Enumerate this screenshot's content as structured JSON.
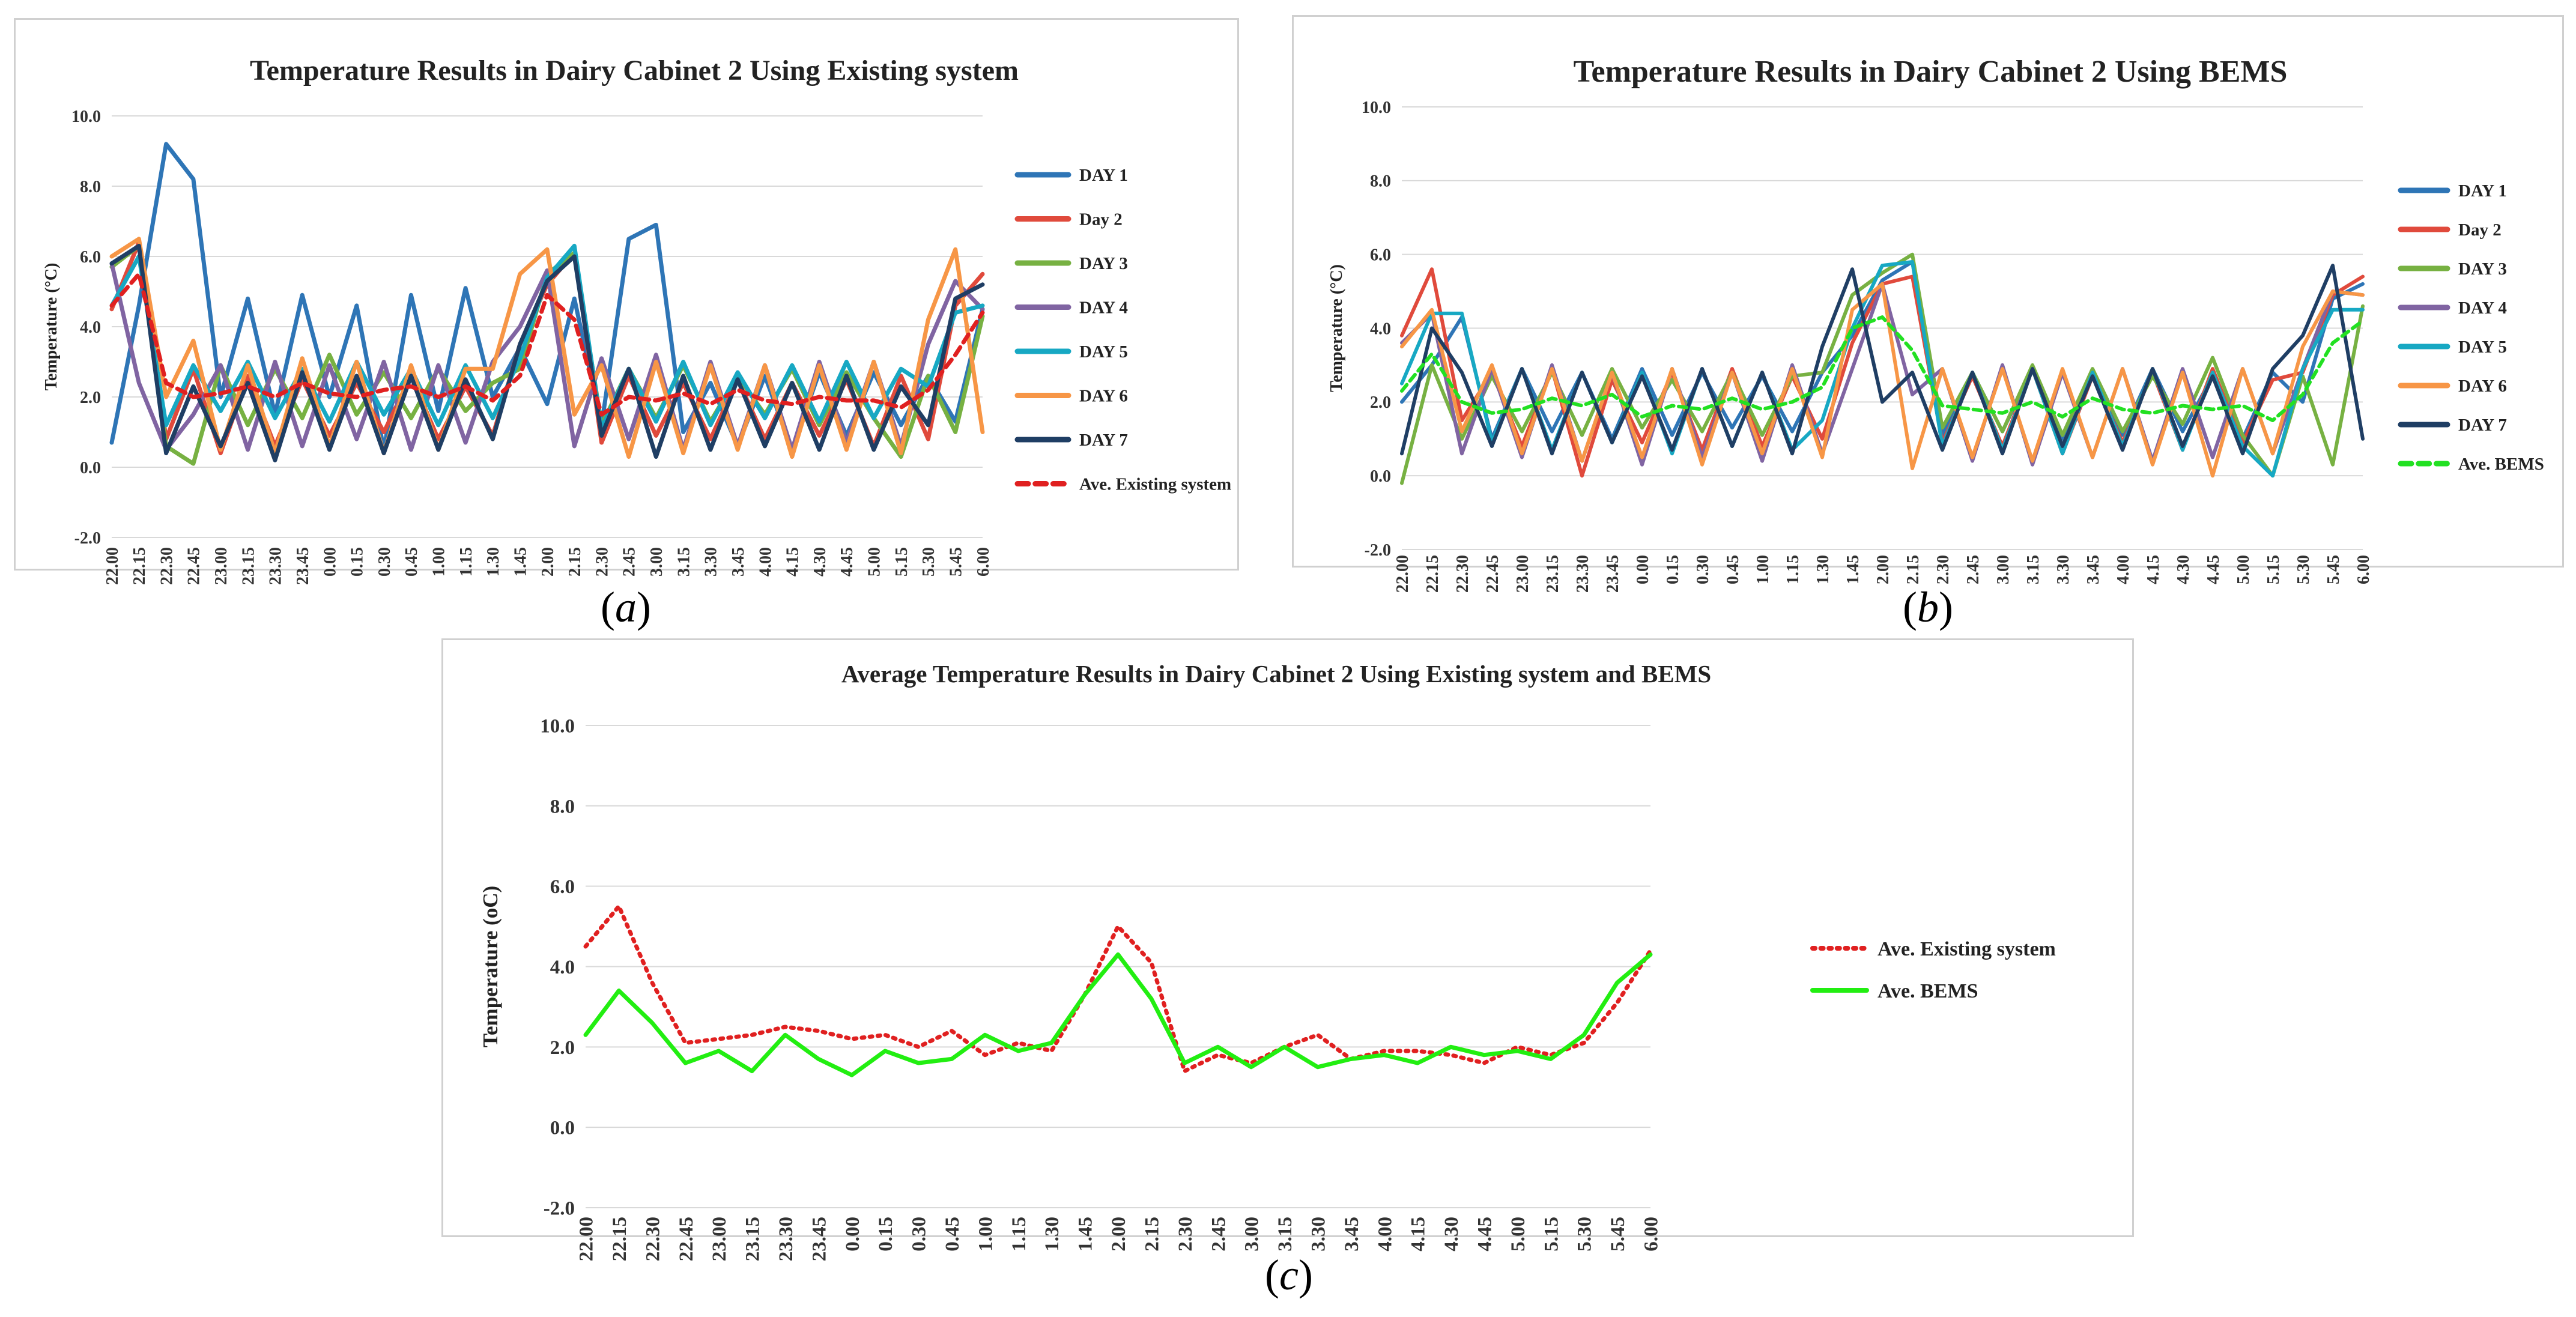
{
  "captions": [
    "a",
    "b",
    "c"
  ],
  "chart_data": [
    {
      "type": "line",
      "title": "Temperature Results in Dairy Cabinet 2 Using Existing system",
      "xlabel": "",
      "ylabel": "Temperature (°C)",
      "ylim": [
        -2,
        10
      ],
      "yticks": [
        "10.0",
        "8.0",
        "6.0",
        "4.0",
        "2.0",
        "0.0",
        "-2.0"
      ],
      "categories": [
        "22.00",
        "22.15",
        "22.30",
        "22.45",
        "23.00",
        "23.15",
        "23.30",
        "23.45",
        "0.00",
        "0.15",
        "0.30",
        "0.45",
        "1.00",
        "1.15",
        "1.30",
        "1.45",
        "2.00",
        "2.15",
        "2.30",
        "2.45",
        "3.00",
        "3.15",
        "3.30",
        "3.45",
        "4.00",
        "4.15",
        "4.30",
        "4.45",
        "5.00",
        "5.15",
        "5.30",
        "5.45",
        "6.00"
      ],
      "series": [
        {
          "name": "DAY 1",
          "color": "#2e75b6",
          "style": "solid",
          "values": [
            0.7,
            4.6,
            9.2,
            8.2,
            2.0,
            4.8,
            1.5,
            4.9,
            2.0,
            4.6,
            0.5,
            4.9,
            1.6,
            5.1,
            2.0,
            3.4,
            1.8,
            4.8,
            1.2,
            6.5,
            6.9,
            1.0,
            2.4,
            0.6,
            2.6,
            0.5,
            2.7,
            0.9,
            2.7,
            1.2,
            2.6,
            1.3,
            4.5
          ]
        },
        {
          "name": "Day 2",
          "color": "#e04a3c",
          "style": "solid",
          "values": [
            4.5,
            6.4,
            0.8,
            2.8,
            0.4,
            2.6,
            0.6,
            2.5,
            0.9,
            2.4,
            1.0,
            2.6,
            0.8,
            2.3,
            0.9,
            3.5,
            5.2,
            6.1,
            0.7,
            2.6,
            0.9,
            2.4,
            0.8,
            2.5,
            0.8,
            2.4,
            0.9,
            2.5,
            0.6,
            2.6,
            0.8,
            4.6,
            5.5
          ]
        },
        {
          "name": "DAY 3",
          "color": "#77b142",
          "style": "solid",
          "values": [
            5.7,
            6.3,
            0.6,
            0.1,
            2.9,
            1.2,
            2.8,
            1.4,
            3.2,
            1.5,
            2.7,
            1.4,
            2.8,
            1.6,
            2.4,
            2.8,
            5.5,
            6.1,
            1.2,
            2.8,
            1.4,
            2.9,
            1.3,
            2.6,
            1.5,
            2.8,
            1.2,
            2.7,
            1.4,
            0.3,
            2.6,
            1.0,
            4.3
          ]
        },
        {
          "name": "DAY 4",
          "color": "#8064a2",
          "style": "solid",
          "values": [
            5.8,
            2.4,
            0.5,
            1.5,
            2.9,
            0.5,
            3.0,
            0.6,
            2.9,
            0.8,
            3.0,
            0.5,
            2.9,
            0.7,
            3.0,
            4.0,
            5.6,
            0.6,
            3.1,
            0.8,
            3.2,
            0.5,
            3.0,
            0.6,
            2.9,
            0.5,
            3.0,
            0.7,
            3.0,
            0.6,
            3.5,
            5.3,
            4.5
          ]
        },
        {
          "name": "DAY 5",
          "color": "#17a8c3",
          "style": "solid",
          "values": [
            4.6,
            6.0,
            1.2,
            2.9,
            1.6,
            3.0,
            1.4,
            2.8,
            1.3,
            3.0,
            1.5,
            2.8,
            1.2,
            2.9,
            1.4,
            3.1,
            5.4,
            6.3,
            1.1,
            2.8,
            1.3,
            3.0,
            1.2,
            2.7,
            1.4,
            2.9,
            1.3,
            3.0,
            1.4,
            2.8,
            2.3,
            4.4,
            4.6
          ]
        },
        {
          "name": "DAY 6",
          "color": "#f79646",
          "style": "solid",
          "values": [
            6.0,
            6.5,
            2.0,
            3.6,
            0.5,
            2.9,
            0.4,
            3.1,
            0.6,
            3.0,
            0.4,
            2.9,
            0.5,
            2.8,
            2.8,
            5.5,
            6.2,
            1.5,
            2.9,
            0.3,
            3.0,
            0.4,
            2.9,
            0.5,
            2.9,
            0.3,
            2.9,
            0.5,
            3.0,
            0.4,
            4.2,
            6.2,
            1.0
          ]
        },
        {
          "name": "DAY 7",
          "color": "#1f3e64",
          "style": "solid",
          "values": [
            5.8,
            6.3,
            0.4,
            2.3,
            0.6,
            2.4,
            0.2,
            2.7,
            0.5,
            2.6,
            0.4,
            2.6,
            0.5,
            2.5,
            0.8,
            3.5,
            5.3,
            6.0,
            0.9,
            2.8,
            0.3,
            2.6,
            0.5,
            2.5,
            0.6,
            2.4,
            0.5,
            2.6,
            0.5,
            2.3,
            1.2,
            4.8,
            5.2
          ]
        },
        {
          "name": "Ave. Existing system",
          "color": "#e02020",
          "style": "dashed",
          "values": [
            4.6,
            5.5,
            2.4,
            2.0,
            2.1,
            2.3,
            2.0,
            2.4,
            2.1,
            2.0,
            2.2,
            2.3,
            2.0,
            2.3,
            1.9,
            2.6,
            4.9,
            4.2,
            1.5,
            2.0,
            1.9,
            2.1,
            1.8,
            2.2,
            1.9,
            1.8,
            2.0,
            1.9,
            1.9,
            1.7,
            2.2,
            3.2,
            4.4
          ]
        }
      ]
    },
    {
      "type": "line",
      "title": "Temperature Results in Dairy Cabinet 2 Using BEMS",
      "xlabel": "",
      "ylabel": "Temperature (°C)",
      "ylim": [
        -2,
        10
      ],
      "yticks": [
        "10.0",
        "8.0",
        "6.0",
        "4.0",
        "2.0",
        "0.0",
        "-2.0"
      ],
      "categories": [
        "22.00",
        "22.15",
        "22.30",
        "22.45",
        "23.00",
        "23.15",
        "23.30",
        "23.45",
        "0.00",
        "0.15",
        "0.30",
        "0.45",
        "1.00",
        "1.15",
        "1.30",
        "1.45",
        "2.00",
        "2.15",
        "2.30",
        "2.45",
        "3.00",
        "3.15",
        "3.30",
        "3.45",
        "4.00",
        "4.15",
        "4.30",
        "4.45",
        "5.00",
        "5.15",
        "5.30",
        "5.45",
        "6.00"
      ],
      "series": [
        {
          "name": "DAY 1",
          "color": "#2e75b6",
          "style": "solid",
          "values": [
            2.0,
            3.0,
            4.3,
            1.0,
            2.9,
            1.2,
            2.8,
            1.0,
            2.9,
            1.1,
            2.8,
            1.3,
            2.7,
            1.2,
            2.8,
            3.8,
            5.3,
            5.8,
            1.1,
            2.8,
            1.2,
            2.9,
            1.0,
            2.8,
            1.1,
            2.9,
            1.2,
            2.7,
            1.0,
            2.8,
            2.0,
            4.8,
            5.2
          ]
        },
        {
          "name": "Day 2",
          "color": "#e04a3c",
          "style": "solid",
          "values": [
            3.8,
            5.6,
            1.5,
            2.8,
            0.8,
            2.9,
            0.0,
            2.6,
            0.9,
            2.8,
            0.7,
            2.9,
            0.8,
            2.7,
            1.0,
            3.6,
            5.2,
            5.4,
            0.9,
            2.7,
            0.8,
            2.9,
            0.6,
            2.7,
            0.9,
            2.8,
            0.7,
            2.9,
            0.9,
            2.6,
            2.8,
            4.9,
            5.4
          ]
        },
        {
          "name": "DAY 3",
          "color": "#77b142",
          "style": "solid",
          "values": [
            -0.2,
            3.0,
            1.0,
            2.7,
            1.2,
            2.8,
            1.1,
            2.9,
            1.3,
            2.6,
            1.2,
            2.8,
            1.1,
            2.7,
            2.8,
            4.9,
            5.5,
            6.0,
            1.3,
            2.8,
            1.2,
            3.0,
            1.1,
            2.9,
            1.2,
            2.7,
            1.4,
            3.2,
            1.1,
            0.0,
            2.7,
            0.3,
            4.6
          ]
        },
        {
          "name": "DAY 4",
          "color": "#8064a2",
          "style": "solid",
          "values": [
            3.6,
            4.4,
            0.6,
            2.9,
            0.5,
            3.0,
            0.4,
            2.8,
            0.3,
            2.9,
            0.5,
            2.8,
            0.4,
            3.0,
            0.6,
            2.9,
            5.2,
            2.2,
            2.9,
            0.4,
            3.0,
            0.3,
            2.8,
            0.5,
            2.9,
            0.4,
            2.9,
            0.5,
            2.9,
            0.6,
            2.9,
            5.0,
            4.9
          ]
        },
        {
          "name": "DAY 5",
          "color": "#17a8c3",
          "style": "solid",
          "values": [
            2.5,
            4.4,
            4.4,
            0.9,
            2.9,
            0.7,
            2.8,
            0.9,
            2.8,
            0.6,
            2.9,
            0.8,
            2.8,
            0.7,
            1.5,
            4.0,
            5.7,
            5.8,
            0.8,
            2.8,
            0.7,
            2.9,
            0.6,
            2.8,
            0.8,
            2.9,
            0.7,
            2.8,
            0.8,
            0.0,
            2.9,
            4.5,
            4.5
          ]
        },
        {
          "name": "DAY 6",
          "color": "#f79646",
          "style": "solid",
          "values": [
            3.5,
            4.5,
            1.2,
            3.0,
            0.6,
            2.9,
            0.4,
            2.8,
            0.5,
            2.9,
            0.3,
            2.8,
            0.6,
            2.9,
            0.5,
            4.5,
            5.2,
            0.2,
            2.9,
            0.5,
            2.9,
            0.4,
            2.9,
            0.5,
            2.9,
            0.3,
            2.8,
            0.0,
            2.9,
            0.6,
            3.5,
            5.0,
            4.9
          ]
        },
        {
          "name": "DAY 7",
          "color": "#1f3e64",
          "style": "solid",
          "values": [
            0.6,
            4.0,
            2.8,
            0.8,
            2.9,
            0.6,
            2.8,
            0.9,
            2.7,
            0.7,
            2.9,
            0.8,
            2.8,
            0.6,
            3.5,
            5.6,
            2.0,
            2.8,
            0.7,
            2.8,
            0.6,
            2.9,
            0.8,
            2.7,
            0.7,
            2.9,
            0.8,
            2.7,
            0.6,
            2.9,
            3.8,
            5.7,
            1.0
          ]
        },
        {
          "name": "Ave. BEMS",
          "color": "#22e022",
          "style": "dashed",
          "values": [
            2.3,
            3.3,
            2.0,
            1.7,
            1.8,
            2.1,
            1.9,
            2.2,
            1.6,
            1.9,
            1.8,
            2.1,
            1.8,
            2.0,
            2.4,
            4.0,
            4.3,
            3.4,
            1.9,
            1.8,
            1.7,
            2.0,
            1.6,
            2.1,
            1.8,
            1.7,
            1.9,
            1.8,
            1.9,
            1.5,
            2.2,
            3.6,
            4.2
          ]
        }
      ]
    },
    {
      "type": "line",
      "title": "Average Temperature Results in Dairy Cabinet 2 Using Existing system and BEMS",
      "xlabel": "",
      "ylabel": "Temperature (oC)",
      "ylim": [
        -2,
        10
      ],
      "yticks": [
        "10.0",
        "8.0",
        "6.0",
        "4.0",
        "2.0",
        "0.0",
        "-2.0"
      ],
      "categories": [
        "22.00",
        "22.15",
        "22.30",
        "22.45",
        "23.00",
        "23.15",
        "23.30",
        "23.45",
        "0.00",
        "0.15",
        "0.30",
        "0.45",
        "1.00",
        "1.15",
        "1.30",
        "1.45",
        "2.00",
        "2.15",
        "2.30",
        "2.45",
        "3.00",
        "3.15",
        "3.30",
        "3.45",
        "4.00",
        "4.15",
        "4.30",
        "4.45",
        "5.00",
        "5.15",
        "5.30",
        "5.45",
        "6.00"
      ],
      "series": [
        {
          "name": "Ave. Existing system",
          "color": "#e02020",
          "style": "dotted",
          "values": [
            4.5,
            5.5,
            3.6,
            2.1,
            2.2,
            2.3,
            2.5,
            2.4,
            2.2,
            2.3,
            2.0,
            2.4,
            1.8,
            2.1,
            1.9,
            3.3,
            5.0,
            4.1,
            1.4,
            1.8,
            1.6,
            2.0,
            2.3,
            1.7,
            1.9,
            1.9,
            1.8,
            1.6,
            2.0,
            1.8,
            2.1,
            3.1,
            4.4
          ]
        },
        {
          "name": "Ave. BEMS",
          "color": "#22ee11",
          "style": "solid",
          "values": [
            2.3,
            3.4,
            2.6,
            1.6,
            1.9,
            1.4,
            2.3,
            1.7,
            1.3,
            1.9,
            1.6,
            1.7,
            2.3,
            1.9,
            2.1,
            3.3,
            4.3,
            3.2,
            1.6,
            2.0,
            1.5,
            2.0,
            1.5,
            1.7,
            1.8,
            1.6,
            2.0,
            1.8,
            1.9,
            1.7,
            2.3,
            3.6,
            4.3
          ]
        }
      ]
    }
  ]
}
